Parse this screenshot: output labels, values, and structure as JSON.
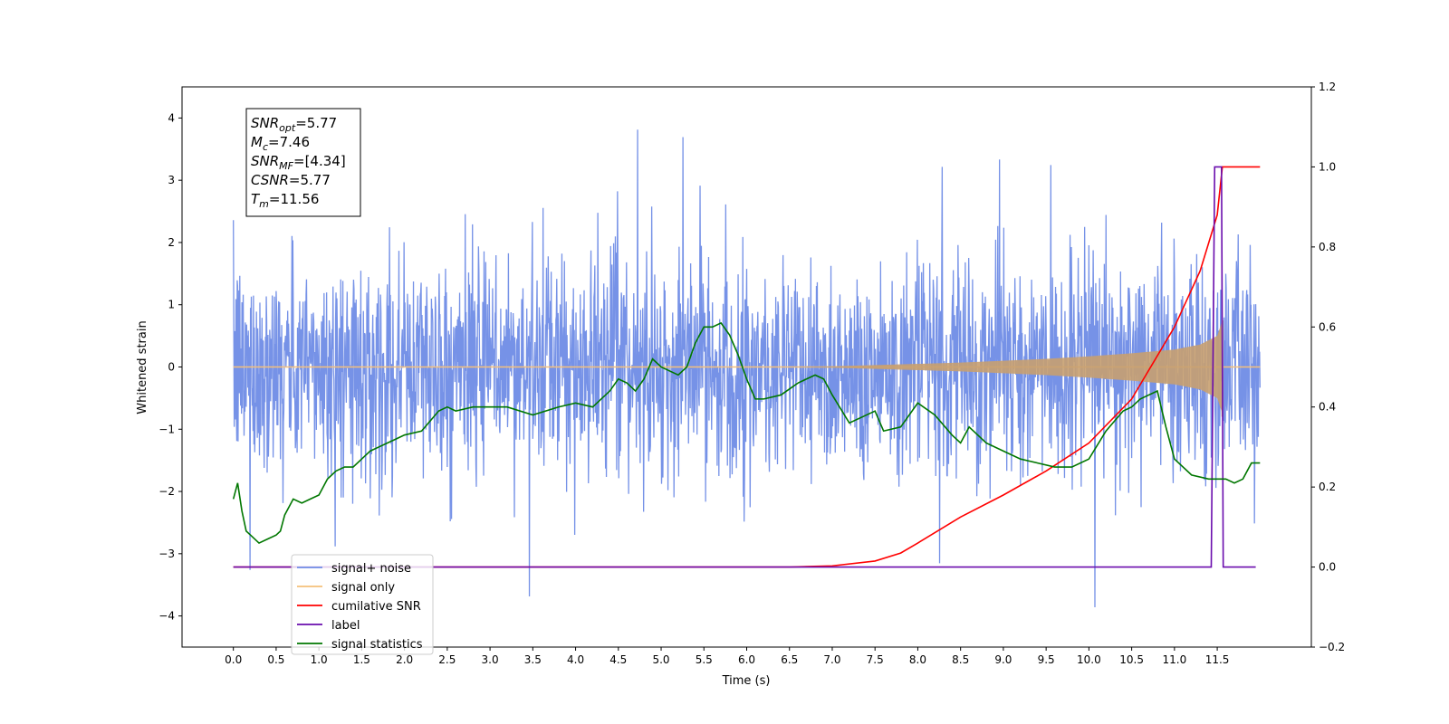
{
  "chart_data": {
    "type": "line",
    "xlabel": "Time (s)",
    "ylabel": "Whitened strain",
    "xlim": [
      -0.6,
      12.6
    ],
    "ylim": [
      -4.5,
      4.5
    ],
    "y2lim": [
      -0.2,
      1.2
    ],
    "x_ticks": [
      "0.0",
      "0.5",
      "1.0",
      "1.5",
      "2.0",
      "2.5",
      "3.0",
      "3.5",
      "4.0",
      "4.5",
      "5.0",
      "5.5",
      "6.0",
      "6.5",
      "7.0",
      "7.5",
      "8.0",
      "8.5",
      "9.0",
      "9.5",
      "10.0",
      "10.5",
      "11.0",
      "11.5"
    ],
    "y_ticks": [
      "4",
      "3",
      "2",
      "1",
      "0",
      "−1",
      "−2",
      "−3",
      "−4"
    ],
    "y2_ticks": [
      "1.2",
      "1.0",
      "0.8",
      "0.6",
      "0.4",
      "0.2",
      "0.0",
      "−0.2"
    ],
    "grid": false,
    "legend_position": "lower-left",
    "annotation": {
      "lines": [
        {
          "base": "SNR",
          "sub": "opt",
          "rest": "=5.77"
        },
        {
          "base": "M",
          "sub": "c",
          "rest": "=7.46"
        },
        {
          "base": "SNR",
          "sub": "MF",
          "rest": "=[4.34]"
        },
        {
          "base": "CSNR",
          "sub": "",
          "rest": "=5.77"
        },
        {
          "base": "T",
          "sub": "m",
          "rest": "=11.56"
        }
      ]
    },
    "series": [
      {
        "name": "signal+ noise",
        "axis": "left",
        "color": "#6f8ce6",
        "style": "noise",
        "t_range": [
          0.0,
          12.0
        ],
        "std": 0.85,
        "min": -4.05,
        "max": 4.1
      },
      {
        "name": "signal only",
        "axis": "left",
        "color": "#f5c07a",
        "fill_color": "#c8a070",
        "style": "chirp",
        "t_range": [
          0.0,
          11.56
        ],
        "envelope_t": [
          6.5,
          7.0,
          7.5,
          8.0,
          8.5,
          9.0,
          9.5,
          10.0,
          10.5,
          11.0,
          11.3,
          11.5,
          11.56
        ],
        "envelope_amp": [
          0.0,
          0.01,
          0.03,
          0.05,
          0.07,
          0.1,
          0.13,
          0.17,
          0.22,
          0.28,
          0.36,
          0.5,
          0.75
        ]
      },
      {
        "name": "cumilative SNR",
        "axis": "right",
        "color": "#ff0000",
        "x": [
          0.0,
          6.5,
          7.0,
          7.5,
          7.8,
          8.0,
          8.5,
          9.0,
          9.5,
          10.0,
          10.5,
          11.0,
          11.3,
          11.5,
          11.56,
          12.0
        ],
        "y": [
          0.0,
          0.0,
          0.003,
          0.015,
          0.035,
          0.06,
          0.125,
          0.18,
          0.24,
          0.31,
          0.42,
          0.6,
          0.74,
          0.88,
          1.0,
          1.0
        ]
      },
      {
        "name": "label",
        "axis": "right",
        "color": "#6a0dad",
        "x": [
          0.0,
          11.43,
          11.47,
          11.55,
          11.57,
          11.95
        ],
        "y": [
          0.0,
          0.0,
          1.0,
          1.0,
          0.0,
          0.0
        ]
      },
      {
        "name": "signal statistics",
        "axis": "right",
        "color": "#007700",
        "x": [
          0.0,
          0.05,
          0.1,
          0.15,
          0.2,
          0.3,
          0.4,
          0.5,
          0.55,
          0.6,
          0.7,
          0.8,
          0.9,
          1.0,
          1.1,
          1.2,
          1.3,
          1.4,
          1.5,
          1.6,
          1.7,
          1.8,
          1.9,
          2.0,
          2.2,
          2.4,
          2.5,
          2.6,
          2.8,
          3.0,
          3.2,
          3.5,
          3.8,
          4.0,
          4.2,
          4.4,
          4.5,
          4.6,
          4.7,
          4.8,
          4.9,
          5.0,
          5.1,
          5.2,
          5.3,
          5.4,
          5.5,
          5.6,
          5.7,
          5.8,
          5.9,
          6.0,
          6.1,
          6.2,
          6.4,
          6.6,
          6.8,
          6.9,
          7.0,
          7.2,
          7.4,
          7.5,
          7.6,
          7.8,
          8.0,
          8.2,
          8.4,
          8.5,
          8.6,
          8.8,
          9.0,
          9.2,
          9.4,
          9.6,
          9.8,
          10.0,
          10.2,
          10.4,
          10.5,
          10.6,
          10.8,
          10.9,
          11.0,
          11.2,
          11.4,
          11.5,
          11.6,
          11.7,
          11.8,
          11.9,
          12.0
        ],
        "y": [
          0.17,
          0.21,
          0.14,
          0.09,
          0.08,
          0.06,
          0.07,
          0.08,
          0.09,
          0.13,
          0.17,
          0.16,
          0.17,
          0.18,
          0.22,
          0.24,
          0.25,
          0.25,
          0.27,
          0.29,
          0.3,
          0.31,
          0.32,
          0.33,
          0.34,
          0.39,
          0.4,
          0.39,
          0.4,
          0.4,
          0.4,
          0.38,
          0.4,
          0.41,
          0.4,
          0.44,
          0.47,
          0.46,
          0.44,
          0.47,
          0.52,
          0.5,
          0.49,
          0.48,
          0.5,
          0.56,
          0.6,
          0.6,
          0.61,
          0.58,
          0.53,
          0.47,
          0.42,
          0.42,
          0.43,
          0.46,
          0.48,
          0.47,
          0.43,
          0.36,
          0.38,
          0.39,
          0.34,
          0.35,
          0.41,
          0.38,
          0.33,
          0.31,
          0.35,
          0.31,
          0.29,
          0.27,
          0.26,
          0.25,
          0.25,
          0.27,
          0.34,
          0.39,
          0.4,
          0.42,
          0.44,
          0.35,
          0.27,
          0.23,
          0.22,
          0.22,
          0.22,
          0.21,
          0.22,
          0.26,
          0.26
        ]
      }
    ]
  }
}
